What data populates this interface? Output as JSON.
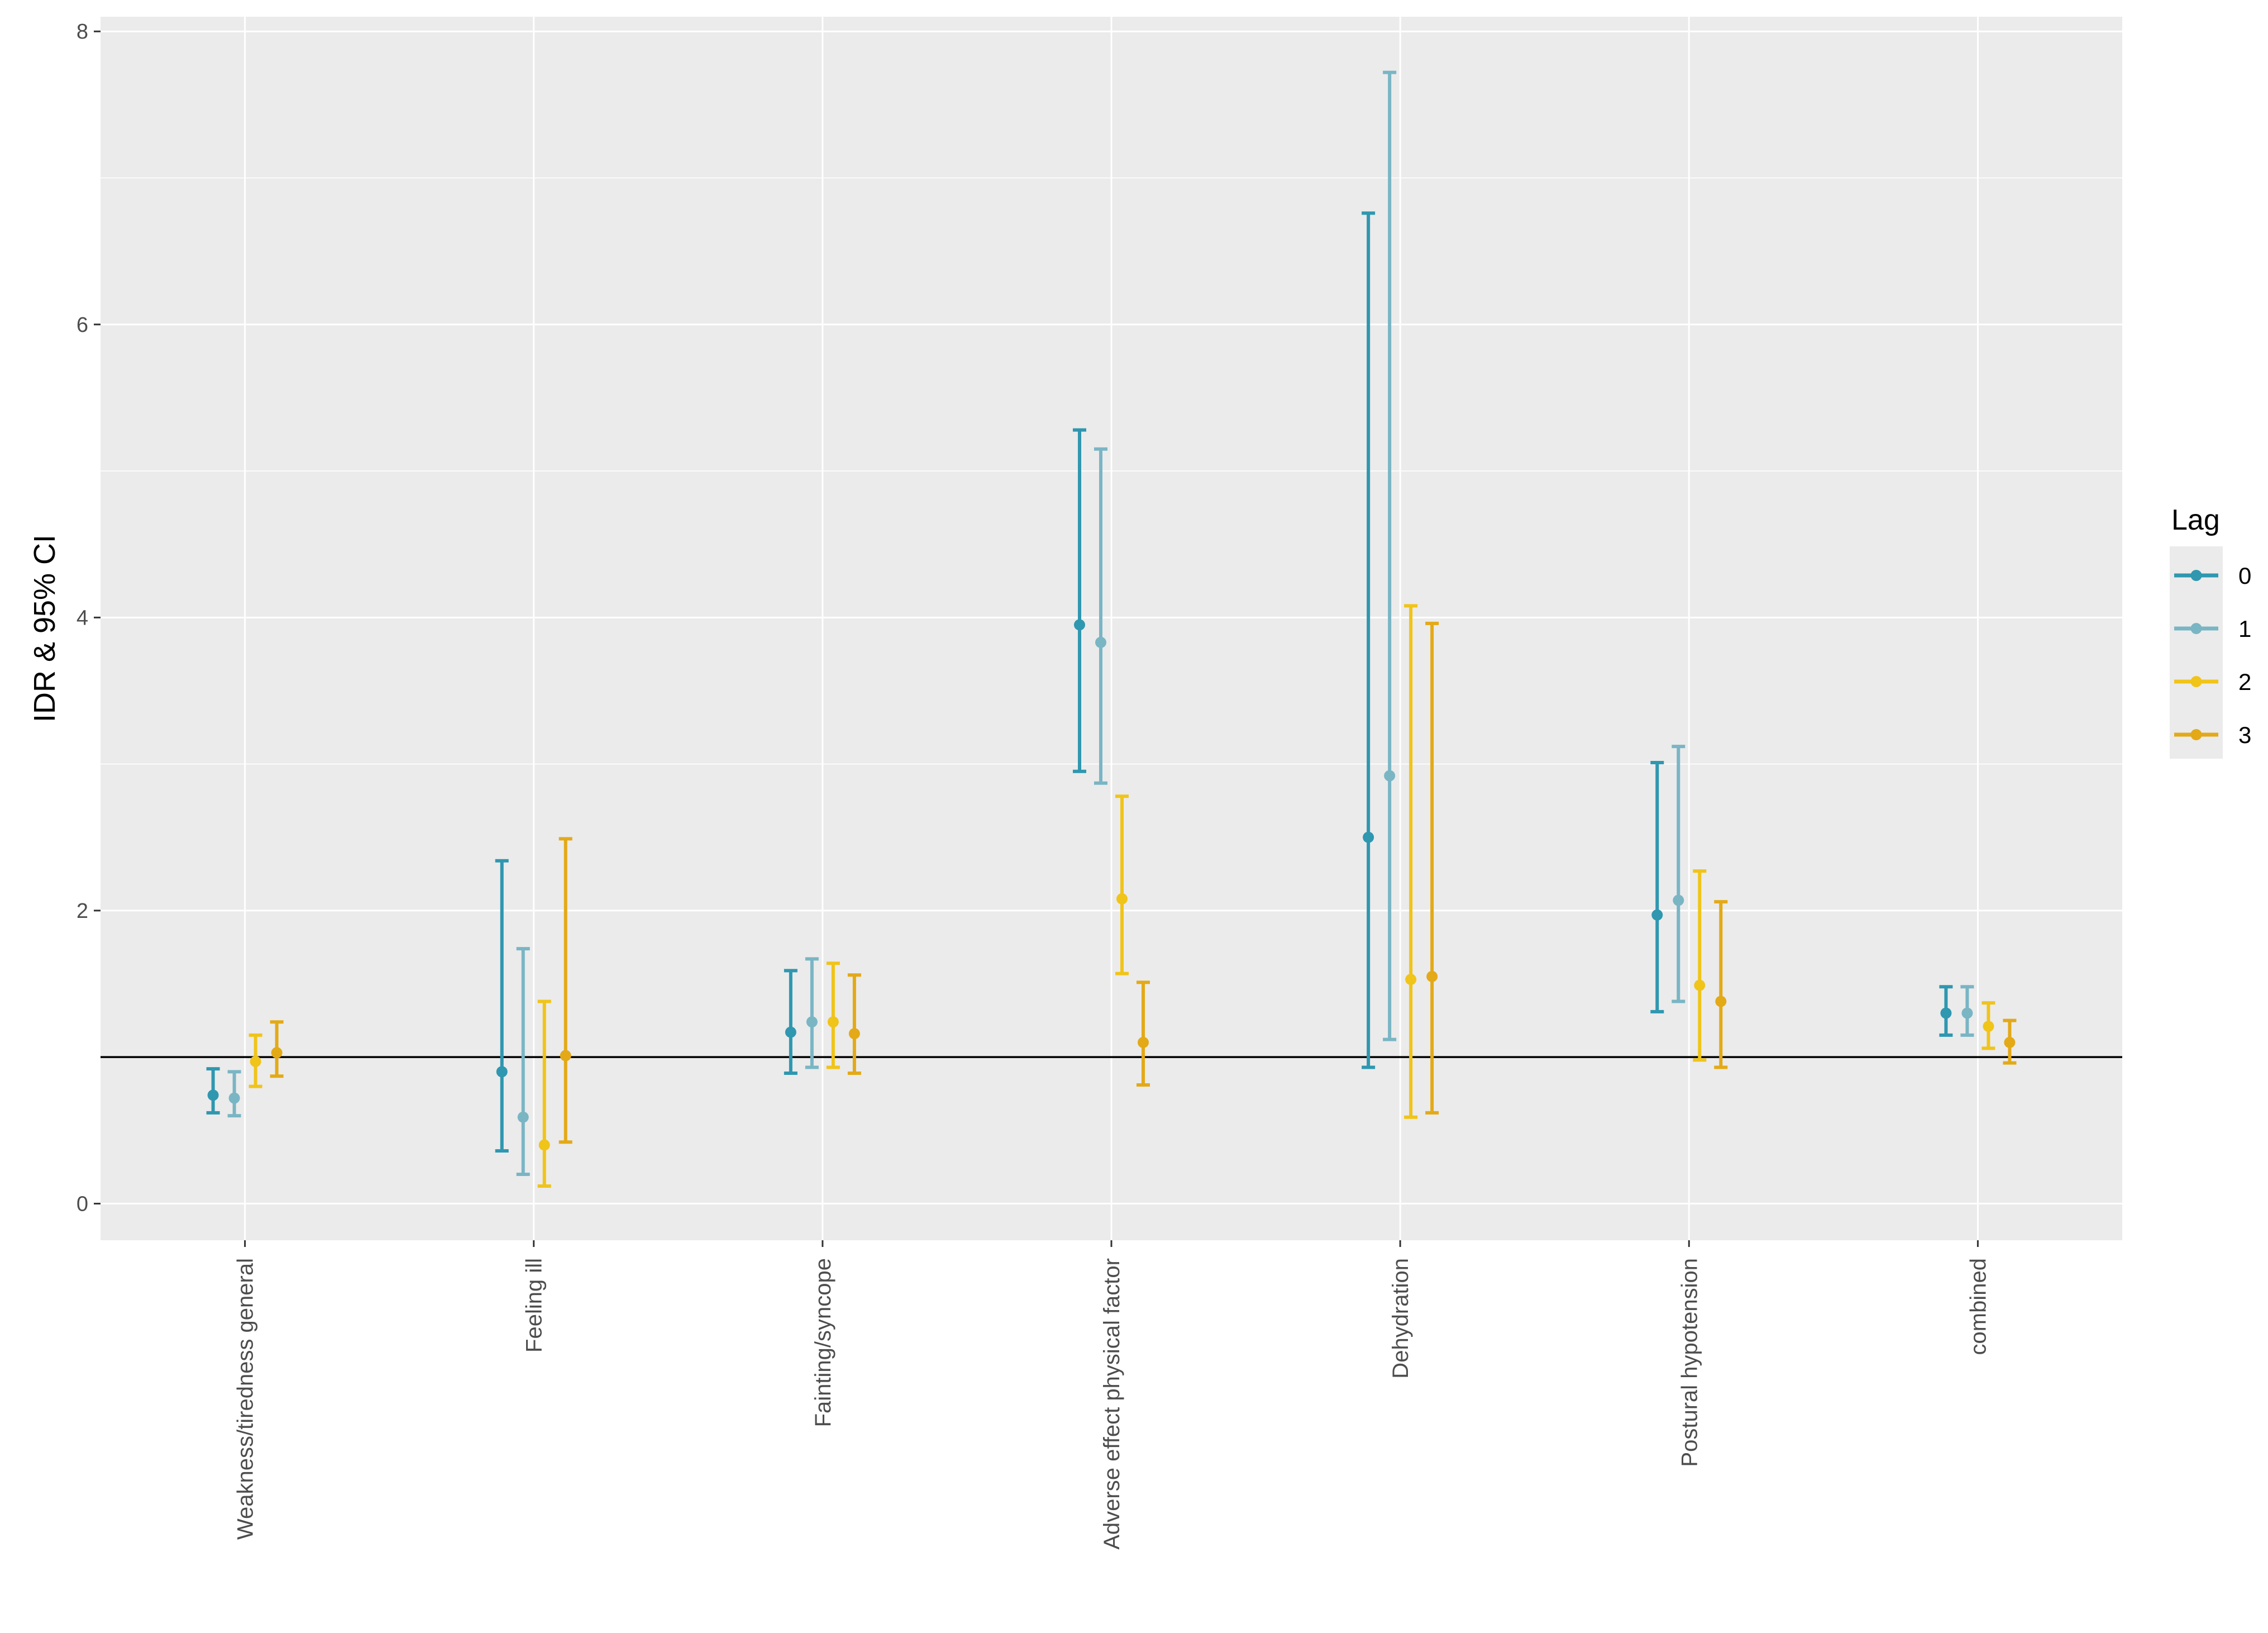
{
  "chart_data": {
    "type": "errorbar",
    "title": "",
    "xlabel": "",
    "ylabel": "IDR & 95% CI",
    "ylim": [
      -0.25,
      8.1
    ],
    "yticks": [
      0,
      2,
      4,
      6,
      8
    ],
    "reference_line": 1,
    "legend": {
      "title": "Lag",
      "position": "right"
    },
    "categories": [
      "Weakness/tiredness general",
      "Feeling ill",
      "Fainting/syncope",
      "Adverse effect physical factor",
      "Dehydration",
      "Postural hypotension",
      "combined"
    ],
    "series": [
      {
        "name": "0",
        "color": "#2f97b0",
        "estimate": [
          0.74,
          0.9,
          1.17,
          3.95,
          2.5,
          1.97,
          1.3
        ],
        "lower": [
          0.62,
          0.36,
          0.89,
          2.95,
          0.93,
          1.31,
          1.15
        ],
        "upper": [
          0.92,
          2.34,
          1.59,
          5.28,
          6.76,
          3.01,
          1.48
        ]
      },
      {
        "name": "1",
        "color": "#7ab5c4",
        "estimate": [
          0.72,
          0.59,
          1.24,
          3.83,
          2.92,
          2.07,
          1.3
        ],
        "lower": [
          0.6,
          0.2,
          0.93,
          2.87,
          1.12,
          1.38,
          1.15
        ],
        "upper": [
          0.9,
          1.74,
          1.67,
          5.15,
          7.72,
          3.12,
          1.48
        ]
      },
      {
        "name": "2",
        "color": "#f0c419",
        "estimate": [
          0.97,
          0.4,
          1.24,
          2.08,
          1.53,
          1.49,
          1.21
        ],
        "lower": [
          0.8,
          0.12,
          0.93,
          1.57,
          0.59,
          0.98,
          1.06
        ],
        "upper": [
          1.15,
          1.38,
          1.64,
          2.78,
          4.08,
          2.27,
          1.37
        ]
      },
      {
        "name": "3",
        "color": "#e3a917",
        "estimate": [
          1.03,
          1.01,
          1.16,
          1.1,
          1.55,
          1.38,
          1.1
        ],
        "lower": [
          0.87,
          0.42,
          0.89,
          0.81,
          0.62,
          0.93,
          0.96
        ],
        "upper": [
          1.24,
          2.49,
          1.56,
          1.51,
          3.96,
          2.06,
          1.25
        ]
      }
    ]
  }
}
